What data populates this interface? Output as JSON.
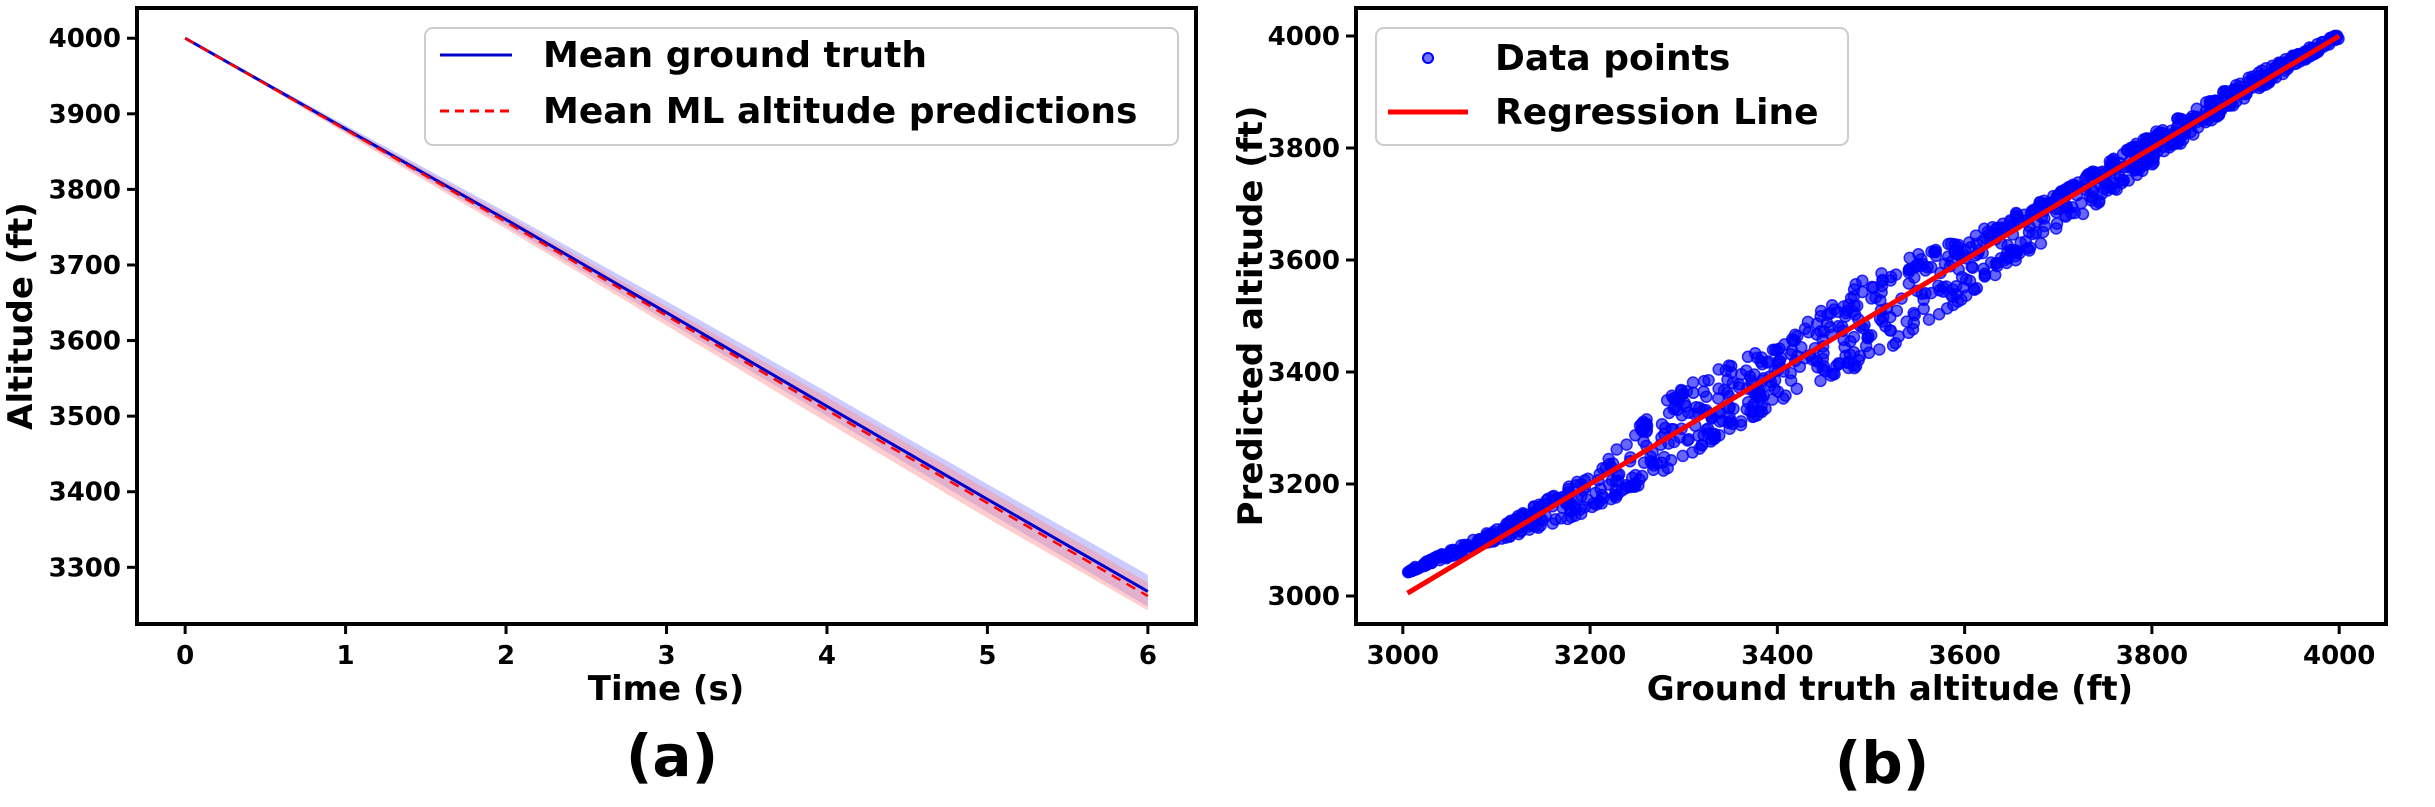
{
  "figure": {
    "caption_a": "(a)",
    "caption_b": "(b)"
  },
  "chart_data": [
    {
      "type": "line",
      "panel": "(a)",
      "title": "",
      "xlabel": "Time (s)",
      "ylabel": "Altitude (ft)",
      "xlim": [
        -0.3,
        6.3
      ],
      "ylim": [
        3225,
        4040
      ],
      "xticks": [
        0,
        1,
        2,
        3,
        4,
        5,
        6
      ],
      "yticks": [
        3300,
        3400,
        3500,
        3600,
        3700,
        3800,
        3900,
        4000
      ],
      "grid": false,
      "legend_position": "top-right",
      "x": [
        0,
        1,
        2,
        3,
        4,
        5,
        6
      ],
      "series": [
        {
          "name": "Mean ground truth",
          "style": "solid",
          "color": "#0000cc",
          "values": [
            4000,
            3880,
            3760,
            3637,
            3513,
            3390,
            3268
          ],
          "band_lower": [
            4000,
            3876,
            3752,
            3626,
            3500,
            3373,
            3248
          ],
          "band_upper": [
            4000,
            3885,
            3770,
            3652,
            3532,
            3410,
            3290
          ],
          "band_color": "#8c8cff"
        },
        {
          "name": "Mean ML altitude predictions",
          "style": "dashed",
          "color": "#ff0000",
          "values": [
            4000,
            3879,
            3757,
            3633,
            3508,
            3385,
            3262
          ],
          "band_lower": [
            4000,
            3874,
            3748,
            3620,
            3492,
            3365,
            3243
          ],
          "band_upper": [
            4000,
            3883,
            3766,
            3645,
            3525,
            3403,
            3280
          ],
          "band_color": "#ff9090"
        }
      ]
    },
    {
      "type": "scatter",
      "panel": "(b)",
      "title": "",
      "xlabel": "Ground truth altitude (ft)",
      "ylabel": "Predicted altitude (ft)",
      "xlim": [
        2950,
        4050
      ],
      "ylim": [
        2950,
        4050
      ],
      "xticks": [
        3000,
        3200,
        3400,
        3600,
        3800,
        4000
      ],
      "yticks": [
        3000,
        3200,
        3400,
        3600,
        3800,
        4000
      ],
      "grid": false,
      "legend_position": "top-left",
      "series": [
        {
          "name": "Data points",
          "color": "#0000ff",
          "x_range": [
            3005,
            4000
          ],
          "center": [
            [
              3005,
              3042
            ],
            [
              3100,
              3110
            ],
            [
              3200,
              3190
            ],
            [
              3300,
              3300
            ],
            [
              3400,
              3400
            ],
            [
              3500,
              3500
            ],
            [
              3600,
              3600
            ],
            [
              3700,
              3700
            ],
            [
              3800,
              3805
            ],
            [
              3900,
              3905
            ],
            [
              4000,
              4000
            ]
          ],
          "spread_lower": [
            [
              3005,
              3042
            ],
            [
              3100,
              3098
            ],
            [
              3200,
              3150
            ],
            [
              3300,
              3240
            ],
            [
              3400,
              3345
            ],
            [
              3500,
              3420
            ],
            [
              3600,
              3530
            ],
            [
              3700,
              3650
            ],
            [
              3800,
              3770
            ],
            [
              3900,
              3890
            ],
            [
              4000,
              3995
            ]
          ],
          "spread_upper": [
            [
              3005,
              3046
            ],
            [
              3100,
              3120
            ],
            [
              3200,
              3220
            ],
            [
              3300,
              3380
            ],
            [
              3400,
              3450
            ],
            [
              3500,
              3580
            ],
            [
              3600,
              3640
            ],
            [
              3700,
              3720
            ],
            [
              3800,
              3825
            ],
            [
              3900,
              3925
            ],
            [
              4000,
              4005
            ]
          ]
        },
        {
          "name": "Regression Line",
          "color": "#ff0000",
          "x": [
            3005,
            4000
          ],
          "y": [
            3005,
            4000
          ]
        }
      ]
    }
  ]
}
